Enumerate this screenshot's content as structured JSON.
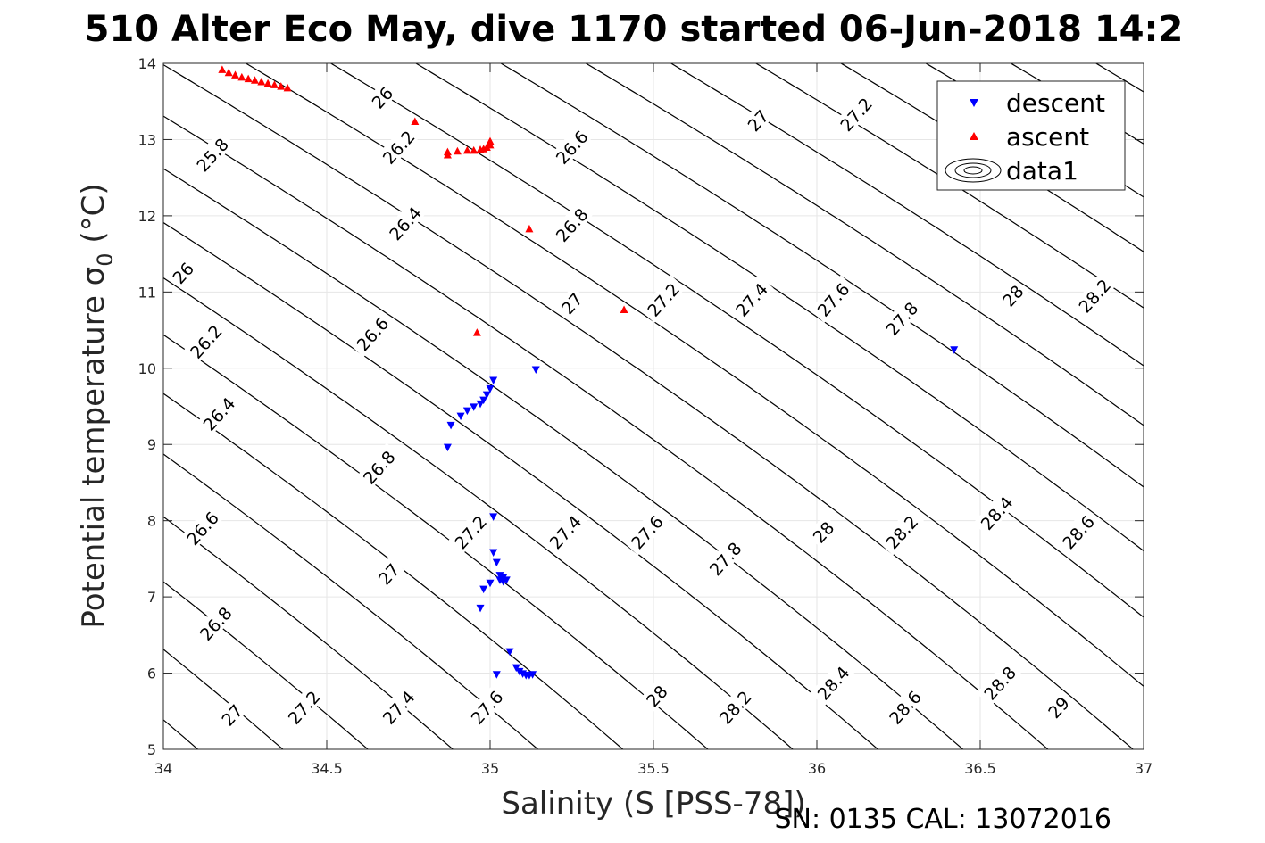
{
  "chart_data": {
    "type": "scatter",
    "title": "510 Alter Eco May, dive 1170 started 06-Jun-2018 14:2",
    "xlabel": "Salinity (S [PSS-78])",
    "ylabel_main": "Potential temperature ",
    "ylabel_symbol": "σ",
    "ylabel_sub": "0",
    "ylabel_unit": " (°C)",
    "footer": "SN: 0135  CAL: 13072016",
    "xlim": [
      34,
      37
    ],
    "ylim": [
      5,
      14
    ],
    "xticks": [
      34,
      34.5,
      35,
      35.5,
      36,
      36.5,
      37
    ],
    "xtick_labels": [
      "34",
      "34.5",
      "35",
      "35.5",
      "36",
      "36.5",
      "37"
    ],
    "yticks": [
      5,
      6,
      7,
      8,
      9,
      10,
      11,
      12,
      13,
      14
    ],
    "ytick_labels": [
      "5",
      "6",
      "7",
      "8",
      "9",
      "10",
      "11",
      "12",
      "13",
      "14"
    ],
    "grid": true,
    "legend_position": "top-right",
    "legend": [
      "descent",
      "ascent",
      "data1"
    ],
    "series": [
      {
        "name": "descent",
        "marker": "triangle-down",
        "color": "#0000ff",
        "x": [
          34.87,
          34.88,
          34.91,
          34.93,
          34.95,
          34.97,
          34.98,
          34.99,
          35.0,
          35.01,
          35.14,
          35.01,
          35.01,
          35.02,
          35.03,
          35.04,
          35.05,
          35.04,
          35.03,
          35.0,
          34.98,
          34.97,
          35.06,
          35.02,
          35.08,
          35.09,
          35.1,
          35.11,
          35.12,
          35.13,
          36.42
        ],
        "y": [
          8.96,
          9.25,
          9.37,
          9.44,
          9.49,
          9.53,
          9.58,
          9.65,
          9.73,
          9.84,
          9.98,
          8.05,
          7.58,
          7.45,
          7.28,
          7.25,
          7.22,
          7.2,
          7.22,
          7.18,
          7.1,
          6.85,
          6.28,
          5.98,
          6.07,
          6.02,
          5.99,
          5.97,
          5.97,
          5.98,
          10.24
        ]
      },
      {
        "name": "ascent",
        "marker": "triangle-up",
        "color": "#ff0000",
        "x": [
          34.18,
          34.2,
          34.22,
          34.24,
          34.26,
          34.28,
          34.3,
          34.32,
          34.34,
          34.36,
          34.38,
          34.77,
          34.87,
          34.87,
          34.9,
          34.93,
          34.95,
          34.97,
          34.98,
          34.99,
          35.0,
          35.0,
          35.12,
          35.41,
          34.96
        ],
        "y": [
          13.92,
          13.88,
          13.85,
          13.82,
          13.8,
          13.78,
          13.76,
          13.74,
          13.72,
          13.7,
          13.68,
          13.24,
          12.8,
          12.84,
          12.85,
          12.86,
          12.86,
          12.87,
          12.88,
          12.9,
          12.93,
          12.98,
          11.83,
          10.77,
          10.47
        ]
      }
    ],
    "contour_levels": [
      25.8,
      26,
      26.2,
      26.4,
      26.6,
      26.8,
      27,
      27.2,
      27.4,
      27.6,
      27.8,
      28,
      28.2,
      28.4,
      28.6,
      28.8,
      29
    ],
    "contour_labels": [
      {
        "text": "26",
        "s": 34.67,
        "t": 13.55
      },
      {
        "text": "25.8",
        "s": 34.15,
        "t": 12.8
      },
      {
        "text": "26.2",
        "s": 34.72,
        "t": 12.9
      },
      {
        "text": "26.4",
        "s": 34.74,
        "t": 11.9
      },
      {
        "text": "26.6",
        "s": 35.25,
        "t": 12.9
      },
      {
        "text": "26.8",
        "s": 35.25,
        "t": 11.88
      },
      {
        "text": "26",
        "s": 34.06,
        "t": 11.25
      },
      {
        "text": "26.2",
        "s": 34.13,
        "t": 10.35
      },
      {
        "text": "26.4",
        "s": 34.17,
        "t": 9.4
      },
      {
        "text": "26.6",
        "s": 34.64,
        "t": 10.45
      },
      {
        "text": "26.8",
        "s": 34.66,
        "t": 8.7
      },
      {
        "text": "27",
        "s": 35.25,
        "t": 10.85
      },
      {
        "text": "27.2",
        "s": 35.53,
        "t": 10.9
      },
      {
        "text": "27.4",
        "s": 35.8,
        "t": 10.9
      },
      {
        "text": "27.6",
        "s": 36.05,
        "t": 10.9
      },
      {
        "text": "27.8",
        "s": 36.26,
        "t": 10.65
      },
      {
        "text": "28",
        "s": 36.6,
        "t": 10.95
      },
      {
        "text": "28.2",
        "s": 36.85,
        "t": 10.95
      },
      {
        "text": "27",
        "s": 35.82,
        "t": 13.25
      },
      {
        "text": "27.2",
        "s": 36.12,
        "t": 13.33
      },
      {
        "text": "26.6",
        "s": 34.12,
        "t": 7.9
      },
      {
        "text": "26.8",
        "s": 34.16,
        "t": 6.65
      },
      {
        "text": "27",
        "s": 34.21,
        "t": 5.45
      },
      {
        "text": "27",
        "s": 34.69,
        "t": 7.3
      },
      {
        "text": "27.2",
        "s": 34.94,
        "t": 7.85
      },
      {
        "text": "27.4",
        "s": 35.23,
        "t": 7.85
      },
      {
        "text": "27.6",
        "s": 35.48,
        "t": 7.85
      },
      {
        "text": "27.8",
        "s": 35.72,
        "t": 7.5
      },
      {
        "text": "28",
        "s": 36.02,
        "t": 7.85
      },
      {
        "text": "28.2",
        "s": 36.26,
        "t": 7.85
      },
      {
        "text": "28.4",
        "s": 36.55,
        "t": 8.1
      },
      {
        "text": "28.6",
        "s": 36.8,
        "t": 7.85
      },
      {
        "text": "27.2",
        "s": 34.43,
        "t": 5.55
      },
      {
        "text": "27.4",
        "s": 34.72,
        "t": 5.55
      },
      {
        "text": "27.6",
        "s": 34.99,
        "t": 5.55
      },
      {
        "text": "28",
        "s": 35.51,
        "t": 5.7
      },
      {
        "text": "28.2",
        "s": 35.75,
        "t": 5.55
      },
      {
        "text": "28.4",
        "s": 36.05,
        "t": 5.87
      },
      {
        "text": "28.6",
        "s": 36.27,
        "t": 5.55
      },
      {
        "text": "28.8",
        "s": 36.56,
        "t": 5.87
      },
      {
        "text": "29",
        "s": 36.74,
        "t": 5.55
      }
    ]
  }
}
